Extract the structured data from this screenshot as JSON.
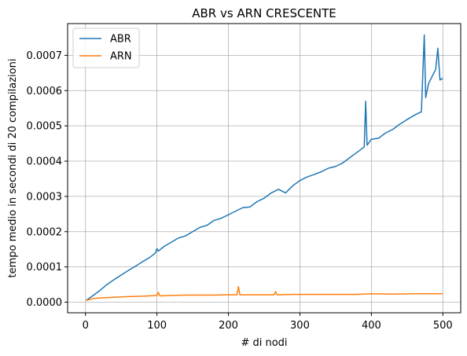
{
  "chart_data": {
    "type": "line",
    "title": "ABR vs ARN CRESCENTE",
    "xlabel": "# di nodi",
    "ylabel": "tempo medio in secondi di 20 compilazioni",
    "xlim": [
      -25,
      525
    ],
    "ylim": [
      -3e-05,
      0.00079
    ],
    "xticks": [
      0,
      100,
      200,
      300,
      400,
      500
    ],
    "xtick_labels": [
      "0",
      "100",
      "200",
      "300",
      "400",
      "500"
    ],
    "yticks": [
      0,
      0.0001,
      0.0002,
      0.0003,
      0.0004,
      0.0005,
      0.0006,
      0.0007
    ],
    "ytick_labels": [
      "0.0000",
      "0.0001",
      "0.0002",
      "0.0003",
      "0.0004",
      "0.0005",
      "0.0006",
      "0.0007"
    ],
    "grid": true,
    "legend_position": "top-left",
    "series": [
      {
        "name": "ABR",
        "color": "#1f77b4",
        "x": [
          1,
          10,
          20,
          30,
          40,
          50,
          60,
          70,
          80,
          90,
          98,
          100,
          102,
          110,
          120,
          130,
          140,
          150,
          160,
          170,
          180,
          190,
          200,
          210,
          220,
          230,
          240,
          250,
          260,
          270,
          280,
          290,
          300,
          310,
          320,
          330,
          340,
          350,
          360,
          370,
          380,
          390,
          392,
          394,
          400,
          410,
          420,
          430,
          440,
          450,
          460,
          470,
          474,
          476,
          480,
          485,
          490,
          493,
          496,
          500
        ],
        "y": [
          5e-06,
          1.8e-05,
          3.3e-05,
          5e-05,
          6.4e-05,
          7.7e-05,
          9e-05,
          0.000102,
          0.000115,
          0.000127,
          0.00014,
          0.000152,
          0.000145,
          0.000158,
          0.00017,
          0.000182,
          0.000188,
          0.0002,
          0.000212,
          0.000218,
          0.000232,
          0.000238,
          0.000248,
          0.000258,
          0.000268,
          0.00027,
          0.000285,
          0.000295,
          0.00031,
          0.00032,
          0.00031,
          0.00033,
          0.000345,
          0.000355,
          0.000362,
          0.00037,
          0.00038,
          0.000385,
          0.000395,
          0.00041,
          0.000425,
          0.00044,
          0.00057,
          0.000445,
          0.000462,
          0.000465,
          0.00048,
          0.00049,
          0.000505,
          0.000518,
          0.00053,
          0.00054,
          0.000758,
          0.00058,
          0.00062,
          0.00064,
          0.00066,
          0.00072,
          0.00063,
          0.000635
        ]
      },
      {
        "name": "ARN",
        "color": "#ff7f0e",
        "x": [
          1,
          10,
          20,
          40,
          60,
          80,
          100,
          102,
          104,
          120,
          140,
          160,
          180,
          200,
          212,
          214,
          216,
          230,
          250,
          264,
          266,
          268,
          290,
          320,
          350,
          380,
          400,
          430,
          460,
          480,
          500
        ],
        "y": [
          5e-06,
          1e-05,
          1.2e-05,
          1.4e-05,
          1.6e-05,
          1.7e-05,
          1.9e-05,
          2.8e-05,
          1.8e-05,
          1.9e-05,
          2e-05,
          2e-05,
          2e-05,
          2.1e-05,
          2.1e-05,
          4.4e-05,
          2.1e-05,
          2.1e-05,
          2.1e-05,
          2.1e-05,
          3e-05,
          2.1e-05,
          2.2e-05,
          2.2e-05,
          2.2e-05,
          2.2e-05,
          2.4e-05,
          2.3e-05,
          2.4e-05,
          2.4e-05,
          2.4e-05
        ]
      }
    ]
  }
}
